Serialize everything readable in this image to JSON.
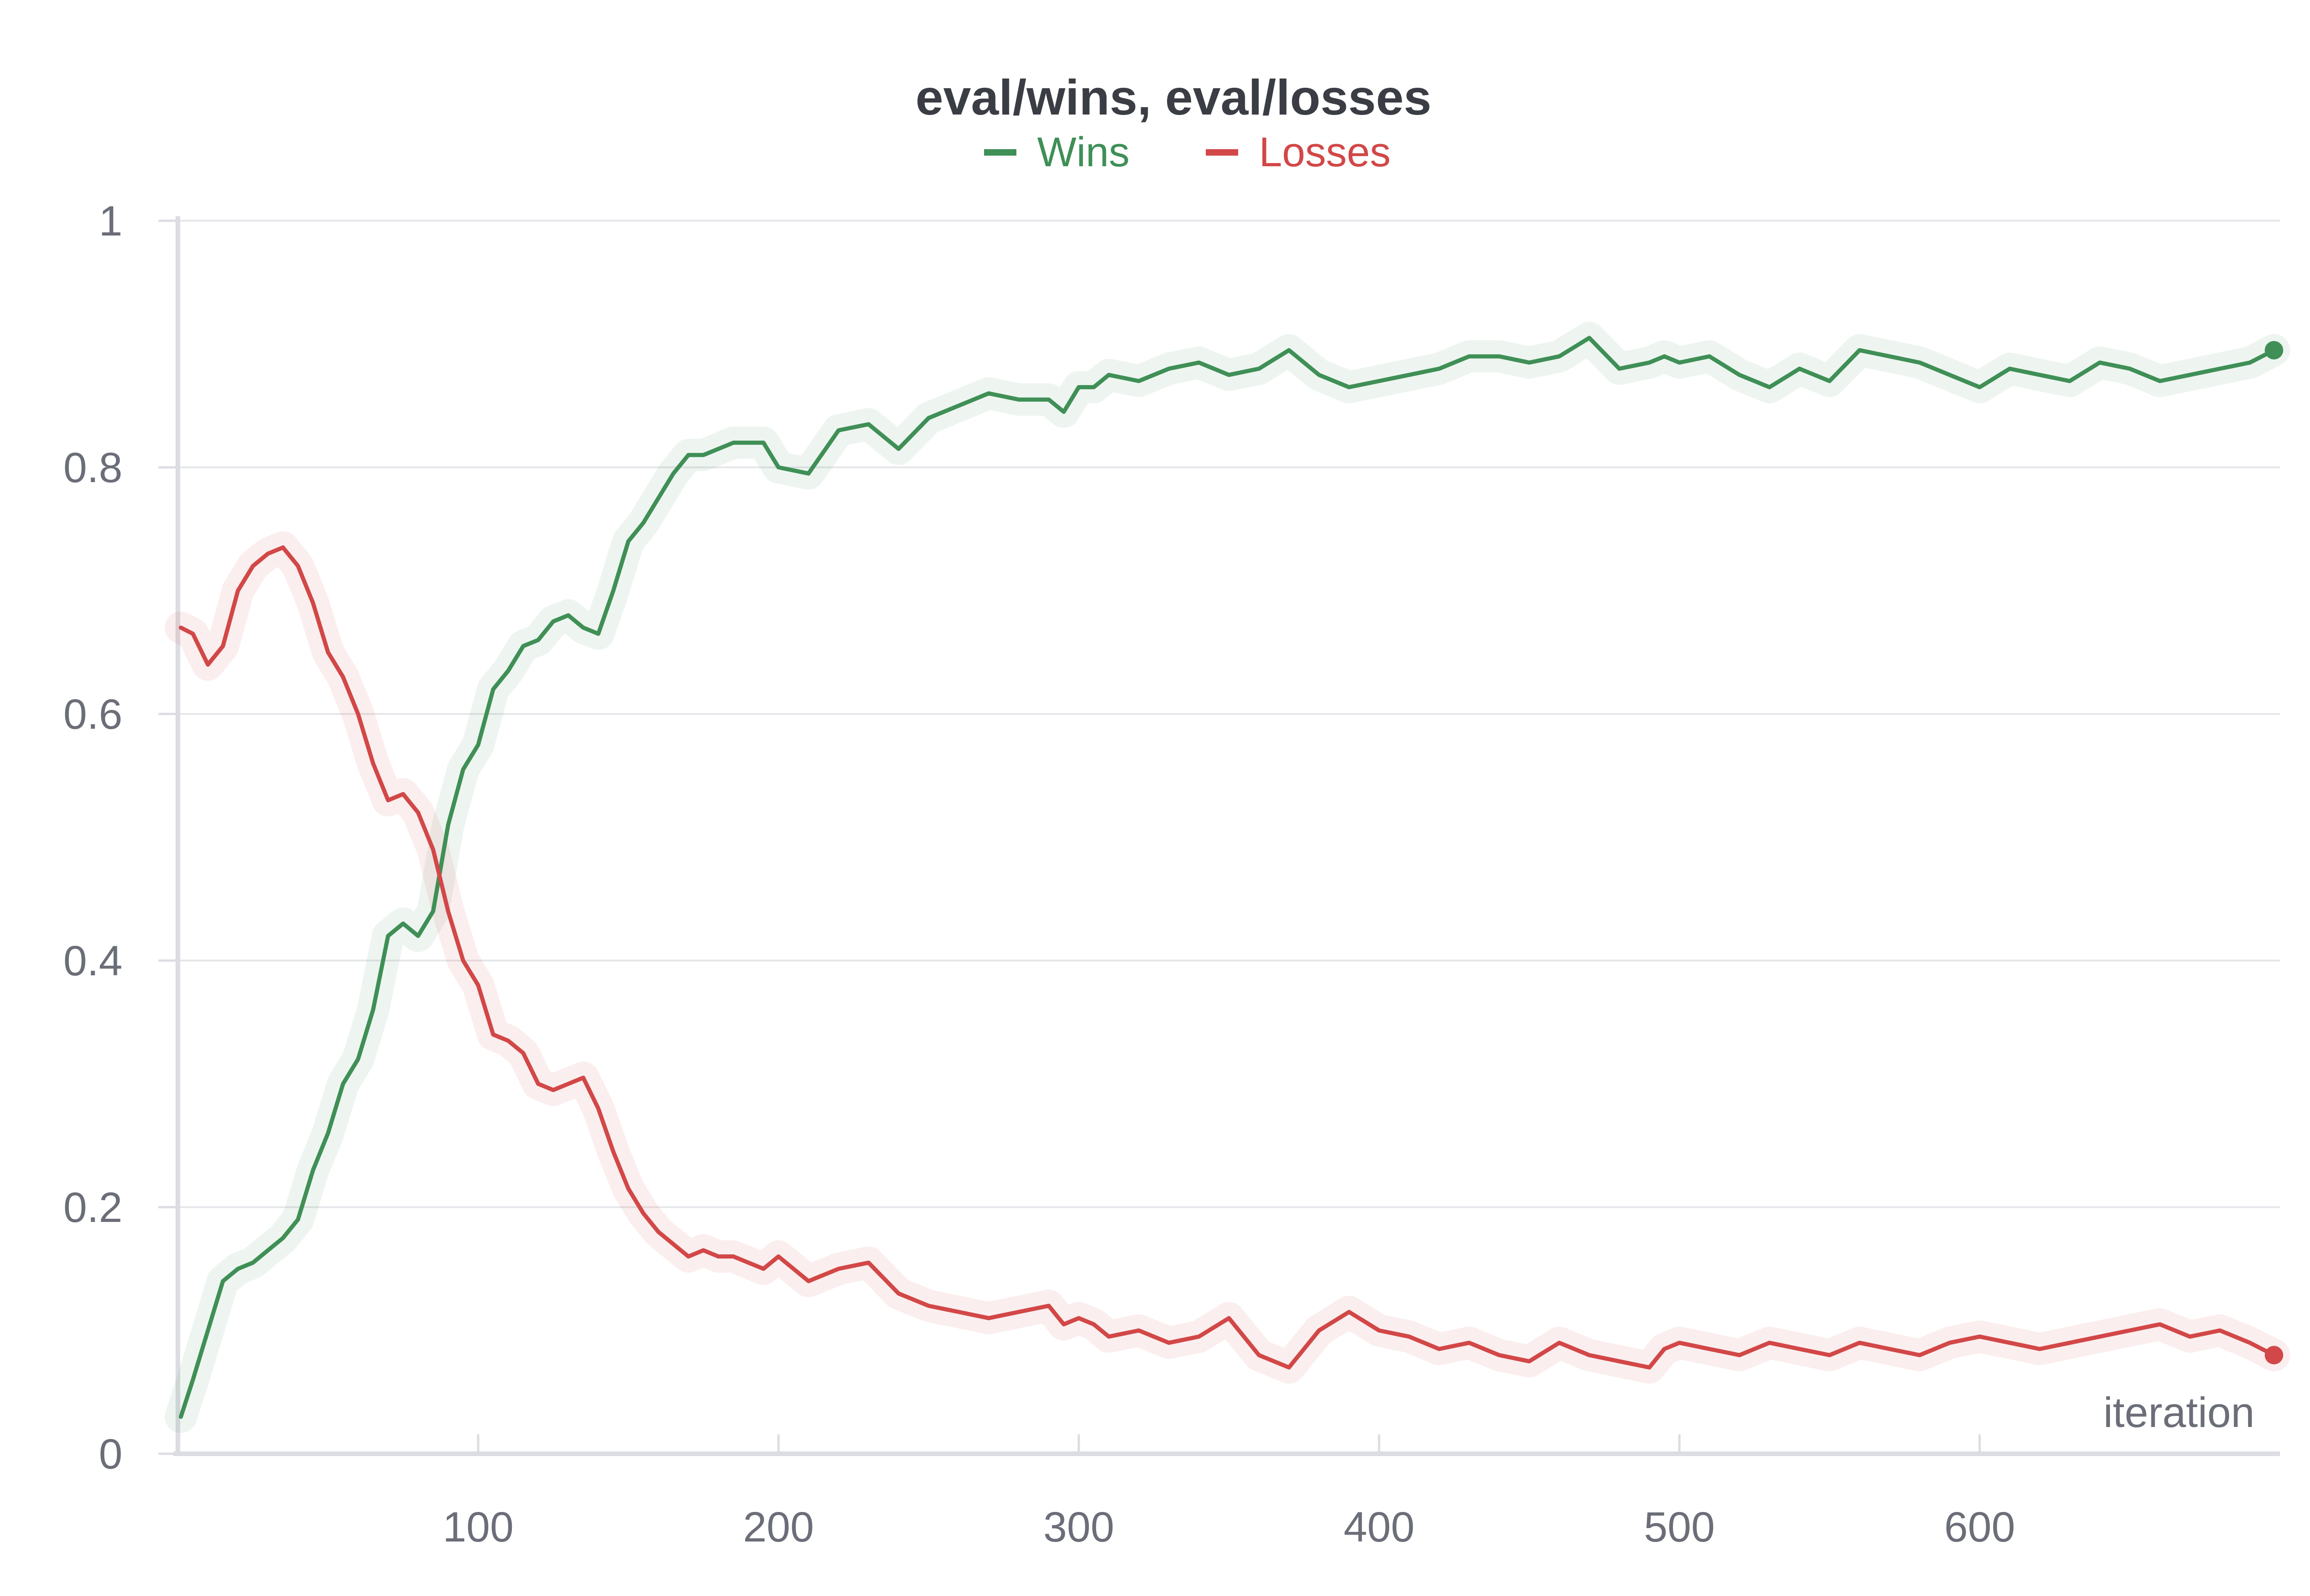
{
  "chart_data": {
    "type": "line",
    "title": "eval/wins, eval/losses",
    "xlabel": "iteration",
    "ylabel": "",
    "xlim": [
      0,
      700
    ],
    "ylim": [
      0,
      1
    ],
    "x_ticks": [
      100,
      200,
      300,
      400,
      500,
      600
    ],
    "y_ticks": [
      0,
      0.2,
      0.4,
      0.6,
      0.8,
      1
    ],
    "y_tick_labels": [
      "0",
      "0.2",
      "0.4",
      "0.6",
      "0.8",
      "1"
    ],
    "grid": true,
    "legend_position": "top-center",
    "series": [
      {
        "name": "Wins",
        "color": "#3f8f56",
        "x": [
          1,
          5,
          10,
          15,
          20,
          25,
          30,
          35,
          40,
          45,
          50,
          55,
          60,
          65,
          70,
          75,
          80,
          85,
          90,
          95,
          100,
          105,
          110,
          115,
          120,
          125,
          130,
          135,
          140,
          145,
          150,
          155,
          160,
          165,
          170,
          175,
          180,
          185,
          190,
          195,
          200,
          210,
          220,
          230,
          240,
          250,
          260,
          270,
          280,
          290,
          295,
          300,
          305,
          310,
          320,
          330,
          340,
          350,
          360,
          370,
          380,
          390,
          400,
          410,
          420,
          430,
          440,
          450,
          460,
          470,
          480,
          490,
          495,
          500,
          510,
          520,
          530,
          540,
          550,
          560,
          570,
          580,
          590,
          600,
          610,
          620,
          630,
          640,
          650,
          660,
          670,
          680,
          690,
          698
        ],
        "values": [
          0.03,
          0.06,
          0.1,
          0.14,
          0.15,
          0.155,
          0.165,
          0.175,
          0.19,
          0.23,
          0.26,
          0.3,
          0.32,
          0.36,
          0.42,
          0.43,
          0.42,
          0.44,
          0.51,
          0.555,
          0.575,
          0.62,
          0.635,
          0.655,
          0.66,
          0.675,
          0.68,
          0.67,
          0.665,
          0.7,
          0.74,
          0.755,
          0.775,
          0.795,
          0.81,
          0.81,
          0.815,
          0.82,
          0.82,
          0.82,
          0.8,
          0.795,
          0.83,
          0.835,
          0.815,
          0.84,
          0.85,
          0.86,
          0.855,
          0.855,
          0.845,
          0.865,
          0.865,
          0.875,
          0.87,
          0.88,
          0.885,
          0.875,
          0.88,
          0.895,
          0.875,
          0.865,
          0.87,
          0.875,
          0.88,
          0.89,
          0.89,
          0.885,
          0.89,
          0.905,
          0.88,
          0.885,
          0.89,
          0.885,
          0.89,
          0.875,
          0.865,
          0.88,
          0.87,
          0.895,
          0.89,
          0.885,
          0.875,
          0.865,
          0.88,
          0.875,
          0.87,
          0.885,
          0.88,
          0.87,
          0.875,
          0.88,
          0.885,
          0.895
        ]
      },
      {
        "name": "Losses",
        "color": "#d24747",
        "x": [
          1,
          5,
          10,
          15,
          20,
          25,
          30,
          35,
          40,
          45,
          50,
          55,
          60,
          65,
          70,
          75,
          80,
          85,
          90,
          95,
          100,
          105,
          110,
          115,
          120,
          125,
          130,
          135,
          140,
          145,
          150,
          155,
          160,
          165,
          170,
          175,
          180,
          185,
          190,
          195,
          200,
          210,
          220,
          230,
          240,
          250,
          260,
          270,
          280,
          290,
          295,
          300,
          305,
          310,
          320,
          330,
          340,
          350,
          360,
          370,
          380,
          390,
          400,
          410,
          420,
          430,
          440,
          450,
          460,
          470,
          480,
          490,
          495,
          500,
          510,
          520,
          530,
          540,
          550,
          560,
          570,
          580,
          590,
          600,
          610,
          620,
          630,
          640,
          650,
          660,
          670,
          680,
          690,
          698
        ],
        "values": [
          0.67,
          0.665,
          0.64,
          0.655,
          0.7,
          0.72,
          0.73,
          0.735,
          0.72,
          0.69,
          0.65,
          0.63,
          0.6,
          0.56,
          0.53,
          0.535,
          0.52,
          0.49,
          0.44,
          0.4,
          0.38,
          0.34,
          0.335,
          0.325,
          0.3,
          0.295,
          0.3,
          0.305,
          0.28,
          0.245,
          0.215,
          0.195,
          0.18,
          0.17,
          0.16,
          0.165,
          0.16,
          0.16,
          0.155,
          0.15,
          0.16,
          0.14,
          0.15,
          0.155,
          0.13,
          0.12,
          0.115,
          0.11,
          0.115,
          0.12,
          0.105,
          0.11,
          0.105,
          0.095,
          0.1,
          0.09,
          0.095,
          0.11,
          0.08,
          0.07,
          0.1,
          0.115,
          0.1,
          0.095,
          0.085,
          0.09,
          0.08,
          0.075,
          0.09,
          0.08,
          0.075,
          0.07,
          0.085,
          0.09,
          0.085,
          0.08,
          0.09,
          0.085,
          0.08,
          0.09,
          0.085,
          0.08,
          0.09,
          0.095,
          0.09,
          0.085,
          0.09,
          0.095,
          0.1,
          0.105,
          0.095,
          0.1,
          0.09,
          0.08
        ]
      }
    ]
  }
}
